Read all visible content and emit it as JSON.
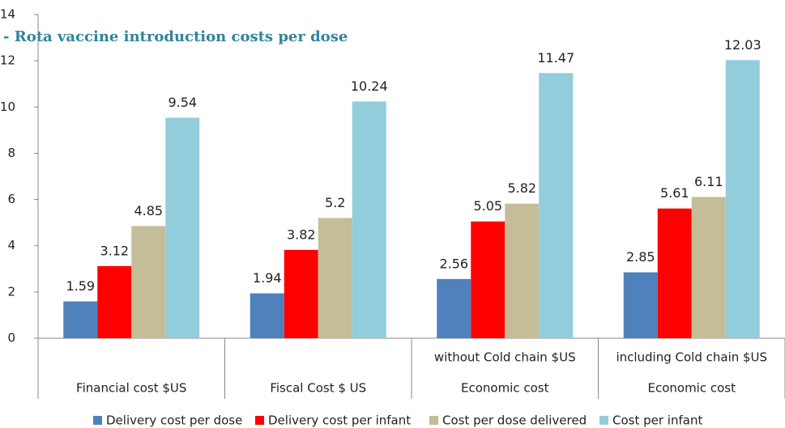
{
  "chart_data": {
    "type": "bar",
    "title": "- Rota vaccine introduction costs per dose",
    "categories": [
      "Financial cost $US",
      "Fiscal Cost $ US",
      "Economic cost",
      "Economic cost"
    ],
    "subcategories": [
      null,
      null,
      "without Cold chain $US",
      "including Cold chain $US"
    ],
    "series": [
      {
        "name": "Delivery cost per dose",
        "color": "#4f81bd",
        "values": [
          1.59,
          1.94,
          2.56,
          2.85
        ]
      },
      {
        "name": "Delivery cost per infant",
        "color": "#ff0000",
        "values": [
          3.12,
          3.82,
          5.05,
          5.61
        ]
      },
      {
        "name": "Cost per dose delivered",
        "color": "#c4bd97",
        "values": [
          4.85,
          5.2,
          5.82,
          6.11
        ]
      },
      {
        "name": "Cost per infant",
        "color": "#92cddc",
        "values": [
          9.54,
          10.24,
          11.47,
          12.03
        ]
      }
    ],
    "ylim": [
      0,
      14
    ],
    "yticks": [
      0,
      2,
      4,
      6,
      8,
      10,
      12,
      14
    ],
    "legend": "bottom"
  }
}
